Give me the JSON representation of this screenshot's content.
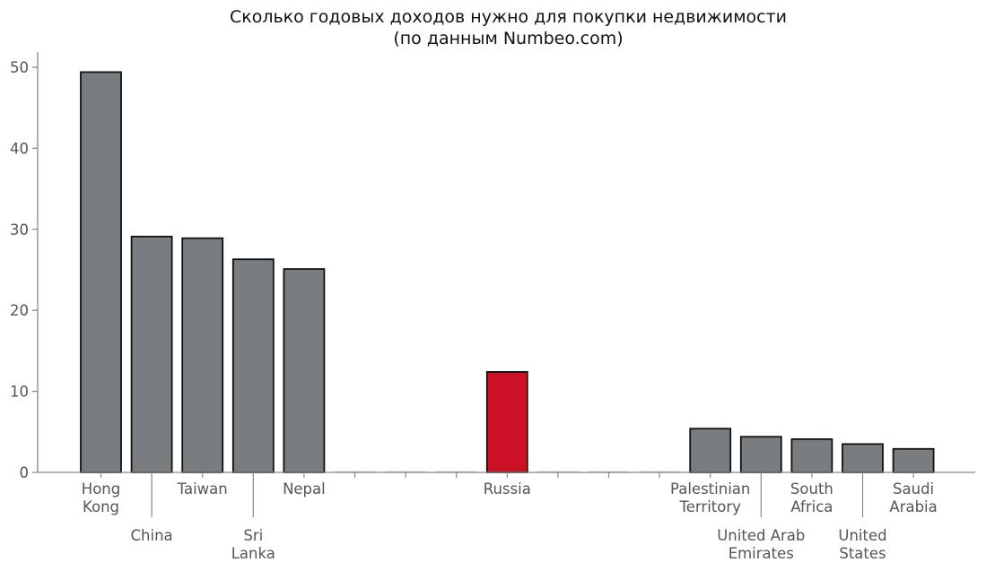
{
  "title": {
    "line1": "Сколько годовых доходов нужно для покупки недвижимости",
    "line2": "(по данным Numbeo.com)"
  },
  "colors": {
    "bar_default": "#7a7d80",
    "bar_highlight": "#cc1126",
    "bar_edge": "#111111",
    "axis": "#888888",
    "tick_text": "#555555"
  },
  "chart_data": {
    "type": "bar",
    "title": "Сколько годовых доходов нужно для покупки недвижимости (по данным Numbeo.com)",
    "xlabel": "",
    "ylabel": "",
    "ylim": [
      0,
      52
    ],
    "yticks": [
      0,
      10,
      20,
      30,
      40,
      50
    ],
    "grid": false,
    "legend": null,
    "categories": [
      "Hong Kong",
      "China",
      "Taiwan",
      "Sri Lanka",
      "Nepal",
      "",
      "",
      "",
      "Russia",
      "",
      "",
      "",
      "Palestinian Territory",
      "United Arab Emirates",
      "South Africa",
      "United States",
      "Saudi Arabia"
    ],
    "values": [
      49.4,
      29.1,
      28.9,
      26.3,
      25.1,
      0,
      0,
      0,
      12.4,
      0,
      0,
      0,
      5.4,
      4.4,
      4.1,
      3.5,
      2.9
    ],
    "highlight": "Russia",
    "labels": [
      {
        "lines": [
          "Hong",
          "Kong"
        ],
        "row": 0
      },
      {
        "lines": [
          "China"
        ],
        "row": 1
      },
      {
        "lines": [
          "Taiwan"
        ],
        "row": 0
      },
      {
        "lines": [
          "Sri",
          "Lanka"
        ],
        "row": 1
      },
      {
        "lines": [
          "Nepal"
        ],
        "row": 0
      },
      null,
      null,
      null,
      {
        "lines": [
          "Russia"
        ],
        "row": 0
      },
      null,
      null,
      null,
      {
        "lines": [
          "Palestinian",
          "Territory"
        ],
        "row": 0
      },
      {
        "lines": [
          "United Arab",
          "Emirates"
        ],
        "row": 1
      },
      {
        "lines": [
          "South",
          "Africa"
        ],
        "row": 0
      },
      {
        "lines": [
          "United",
          "States"
        ],
        "row": 1
      },
      {
        "lines": [
          "Saudi",
          "Arabia"
        ],
        "row": 0
      }
    ]
  }
}
